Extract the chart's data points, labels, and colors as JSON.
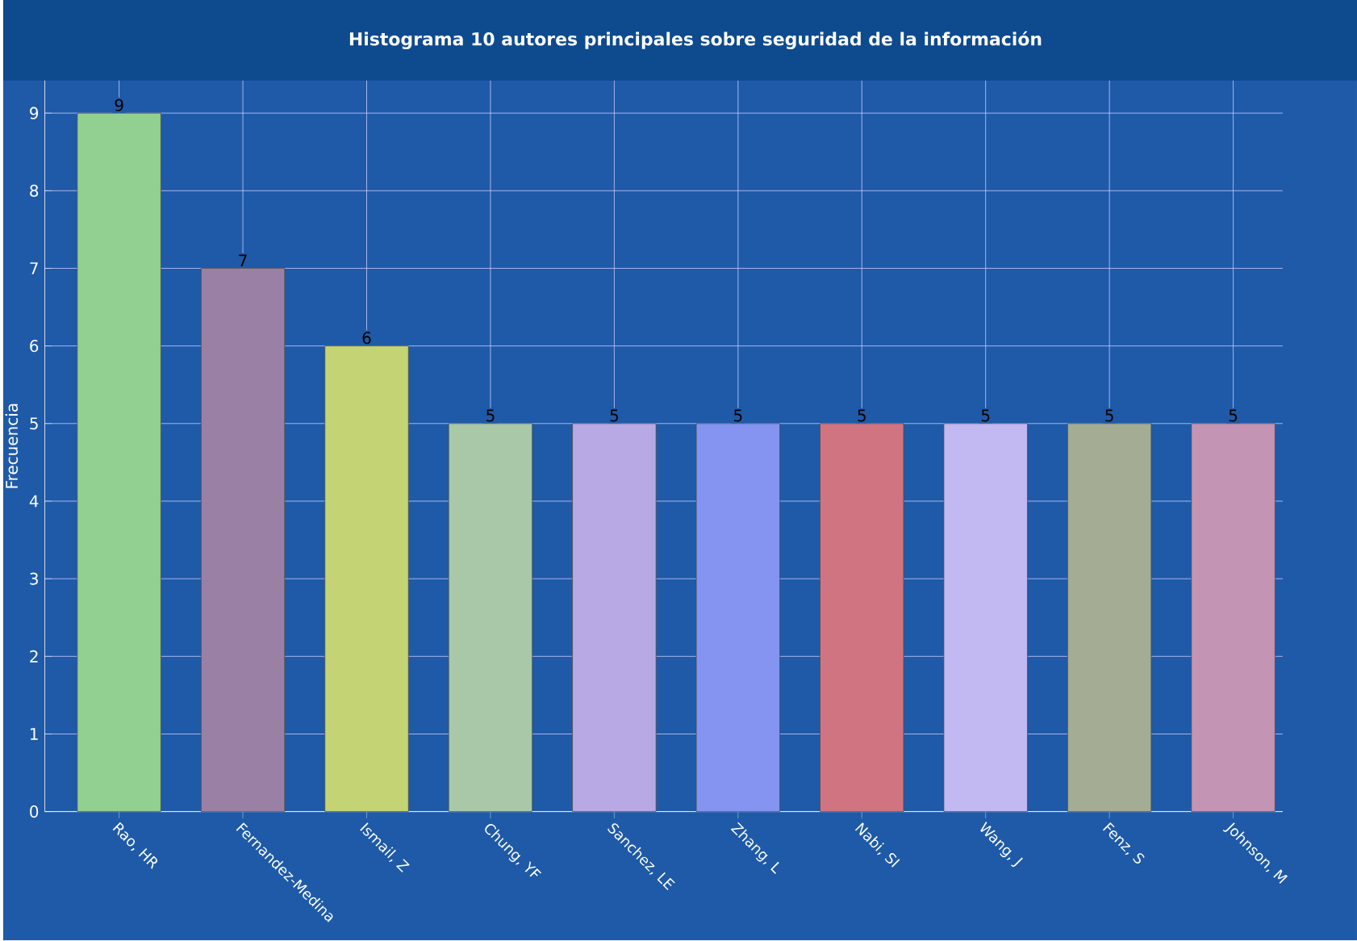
{
  "chart_data": {
    "type": "bar",
    "title": "Histograma 10 autores principales sobre seguridad de la información",
    "ylabel": "Frecuencia",
    "categories": [
      "Rao, HR",
      "Fernandez-Medina",
      "Ismail, Z",
      "Chung, YF",
      "Sanchez, LE",
      "Zhang, L",
      "Nabi, SI",
      "Wang, J",
      "Fenz, S",
      "Johnson, M"
    ],
    "values": [
      9,
      7,
      6,
      5,
      5,
      5,
      5,
      5,
      5,
      5
    ],
    "colors": [
      "#92d092",
      "#9a80a4",
      "#c4d474",
      "#a8c8a8",
      "#b8a8e4",
      "#8494f0",
      "#d07482",
      "#c2b8f2",
      "#a4ac94",
      "#c494b4"
    ],
    "ylim": [
      0,
      9.42
    ],
    "yticks": [
      0,
      1,
      2,
      3,
      4,
      5,
      6,
      7,
      8,
      9
    ],
    "grid": true,
    "data_labels": true
  }
}
